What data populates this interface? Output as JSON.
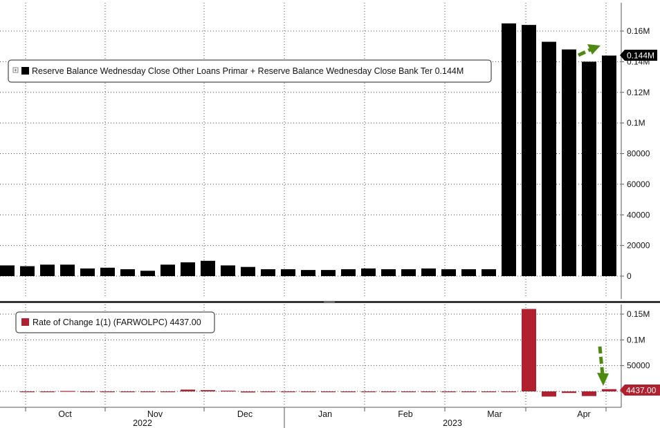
{
  "chart_data": [
    {
      "type": "bar",
      "legend": "Reserve Balance Wednesday Close Other Loans Primar + Reserve Balance Wednesday Close Bank Ter  0.144M",
      "last_value_label": "0.144M",
      "color": "#000000",
      "y_ticks": [
        {
          "value": 0,
          "label": "0"
        },
        {
          "value": 20000,
          "label": "20000"
        },
        {
          "value": 40000,
          "label": "40000"
        },
        {
          "value": 60000,
          "label": "60000"
        },
        {
          "value": 80000,
          "label": "80000"
        },
        {
          "value": 100000,
          "label": "0.1M"
        },
        {
          "value": 120000,
          "label": "0.12M"
        },
        {
          "value": 140000,
          "label": "0.14M"
        },
        {
          "value": 160000,
          "label": "0.16M"
        }
      ],
      "ylim": [
        0,
        180000
      ],
      "values": [
        7000,
        6500,
        7500,
        7500,
        5000,
        5500,
        4500,
        3500,
        7500,
        9000,
        10000,
        7000,
        6000,
        4500,
        4500,
        4000,
        4000,
        4500,
        5000,
        4500,
        4500,
        5000,
        4500,
        4500,
        4500,
        165000,
        164000,
        153000,
        148000,
        140000,
        144000
      ],
      "value_unit": "USD"
    },
    {
      "type": "bar",
      "legend": "Rate of Change 1(1) (FARWOLPC)  4437.00",
      "last_value_label": "4437.00",
      "color": "#b0202e",
      "y_ticks": [
        {
          "value": 50000,
          "label": "50000"
        },
        {
          "value": 100000,
          "label": "0.1M"
        },
        {
          "value": 150000,
          "label": "0.15M"
        }
      ],
      "ylim": [
        -12000,
        170000
      ],
      "values": [
        0,
        0,
        800,
        0,
        -1200,
        0,
        0,
        0,
        3500,
        2500,
        1500,
        -2000,
        -800,
        0,
        0,
        0,
        0,
        0,
        0,
        0,
        0,
        0,
        0,
        0,
        0,
        160000,
        -10000,
        -3000,
        -9000,
        4437
      ],
      "x_month_labels": [
        "Oct",
        "Nov",
        "Dec",
        "Jan",
        "Feb",
        "Mar",
        "Apr"
      ],
      "x_year_labels": [
        "2022",
        "2023"
      ]
    }
  ]
}
